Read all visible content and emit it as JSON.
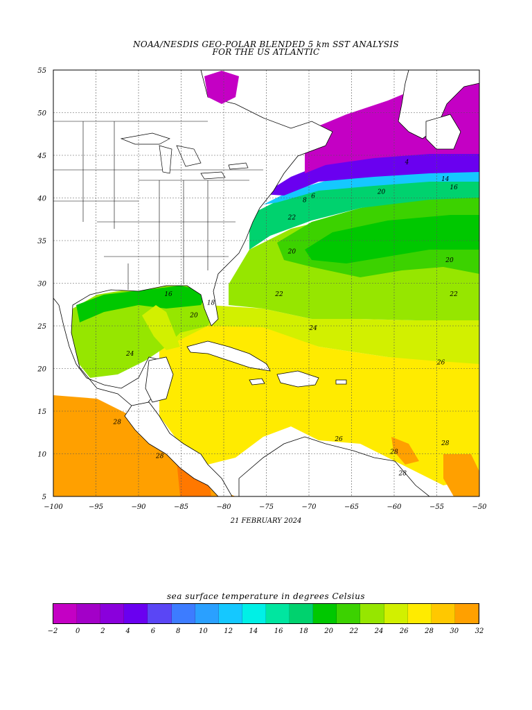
{
  "title_line1": "NOAA/NESDIS GEO-POLAR BLENDED 5 km SST ANALYSIS",
  "title_line2": "FOR THE US ATLANTIC",
  "date": "21 FEBRUARY 2024",
  "axes": {
    "lon_range": [
      -100,
      -50
    ],
    "lat_range": [
      5,
      55
    ],
    "lon_ticks": [
      "−100",
      "−95",
      "−90",
      "−85",
      "−80",
      "−75",
      "−70",
      "−65",
      "−60",
      "−55",
      "−50"
    ],
    "lat_ticks": [
      "55",
      "50",
      "45",
      "40",
      "35",
      "30",
      "25",
      "20",
      "15",
      "10",
      "5"
    ]
  },
  "contour_labels": [
    {
      "text": "20",
      "lon": -61.5,
      "lat": 40.5
    },
    {
      "text": "22",
      "lon": -72,
      "lat": 37.5
    },
    {
      "text": "20",
      "lon": -72,
      "lat": 33.5
    },
    {
      "text": "22",
      "lon": -73.5,
      "lat": 28.5
    },
    {
      "text": "20",
      "lon": -53.5,
      "lat": 32.5
    },
    {
      "text": "22",
      "lon": -53,
      "lat": 28.5
    },
    {
      "text": "24",
      "lon": -69.5,
      "lat": 24.5
    },
    {
      "text": "24",
      "lon": -91,
      "lat": 21.5
    },
    {
      "text": "26",
      "lon": -54.5,
      "lat": 20.5
    },
    {
      "text": "28",
      "lon": -92.5,
      "lat": 13.5
    },
    {
      "text": "28",
      "lon": -87.5,
      "lat": 9.5
    },
    {
      "text": "26",
      "lon": -66.5,
      "lat": 11.5
    },
    {
      "text": "28",
      "lon": -60,
      "lat": 10
    },
    {
      "text": "28",
      "lon": -54,
      "lat": 11
    },
    {
      "text": "28",
      "lon": -59,
      "lat": 7.5
    },
    {
      "text": "16",
      "lon": -86.5,
      "lat": 28.5
    },
    {
      "text": "20",
      "lon": -83.5,
      "lat": 26
    },
    {
      "text": "18",
      "lon": -81.5,
      "lat": 27.5
    },
    {
      "text": "6",
      "lon": -69.5,
      "lat": 40
    },
    {
      "text": "8",
      "lon": -70.5,
      "lat": 39.5
    },
    {
      "text": "4",
      "lon": -58.5,
      "lat": 44
    },
    {
      "text": "14",
      "lon": -54,
      "lat": 42
    },
    {
      "text": "16",
      "lon": -53,
      "lat": 41
    }
  ],
  "colorbar": {
    "title": "sea surface temperature in degrees Celsius",
    "colors": [
      "#c400c4",
      "#a300c8",
      "#8a00dc",
      "#6a00f0",
      "#5a46f5",
      "#3d7cff",
      "#2aa0ff",
      "#15c8ff",
      "#00f0e6",
      "#00e6a0",
      "#00d26e",
      "#00c800",
      "#3cd200",
      "#96e600",
      "#d2f000",
      "#ffeb00",
      "#ffc800",
      "#ffa000"
    ],
    "labels": [
      "−2",
      "0",
      "2",
      "4",
      "6",
      "8",
      "10",
      "12",
      "14",
      "16",
      "18",
      "20",
      "22",
      "24",
      "26",
      "28",
      "30",
      "32"
    ]
  }
}
